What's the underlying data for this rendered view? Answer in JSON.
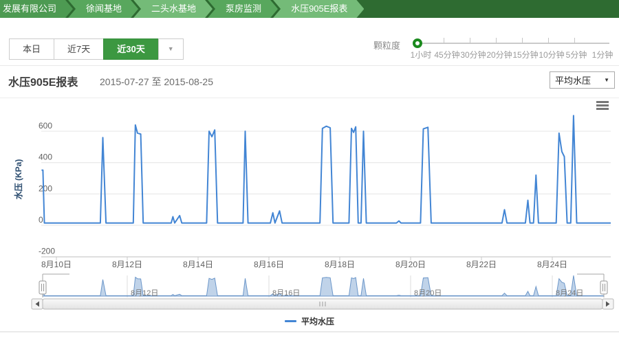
{
  "breadcrumb": {
    "items": [
      "发展有限公司",
      "徐闻基地",
      "二头水基地",
      "泵房监测",
      "水压905E报表"
    ]
  },
  "toolbar": {
    "range_buttons": [
      "本日",
      "近7天",
      "近30天"
    ],
    "active_range": "近30天",
    "more_caret": "▼",
    "granularity": {
      "label": "颗粒度",
      "options": [
        "1小时",
        "45分钟",
        "30分钟",
        "20分钟",
        "15分钟",
        "10分钟",
        "5分钟",
        "1分钟"
      ],
      "selected": "1小时"
    }
  },
  "report": {
    "title": "水压905E报表",
    "date_range": "2015-07-27 至 2015-08-25",
    "metric_select": {
      "value": "平均水压",
      "caret": "▼"
    }
  },
  "colors": {
    "accent_green": "#3c9841",
    "breadcrumb_dark": "#2e6b31",
    "line_blue": "#4285d4",
    "navigator_fill": "rgba(140,175,215,0.55)",
    "navigator_stroke": "#6b96c9",
    "grid": "#e4e4e4",
    "axis_label": "#606060",
    "yaxis_title": "#2b4c6f"
  },
  "chart_data": {
    "type": "line",
    "title": "",
    "xlabel": "",
    "ylabel": "水压 (KPa)",
    "x_unit": "date (August 2015, day of month; fractional = time of day)",
    "ylim": [
      -200,
      750
    ],
    "xlim": [
      9.58,
      25.65
    ],
    "grid": "horizontal-only",
    "yticks": [
      -200,
      0,
      200,
      400,
      600
    ],
    "xticks": {
      "days": [
        10,
        12,
        14,
        16,
        18,
        20,
        22,
        24
      ],
      "labels": [
        "8月10日",
        "8月12日",
        "8月14日",
        "8月16日",
        "8月18日",
        "8月20日",
        "8月22日",
        "8月24日"
      ]
    },
    "series": [
      {
        "name": "平均水压",
        "color": "#4285d4",
        "points": [
          [
            9.58,
            352
          ],
          [
            9.62,
            352
          ],
          [
            9.66,
            15
          ],
          [
            11.24,
            15
          ],
          [
            11.31,
            560
          ],
          [
            11.4,
            15
          ],
          [
            12.17,
            15
          ],
          [
            12.23,
            640
          ],
          [
            12.29,
            588
          ],
          [
            12.38,
            582
          ],
          [
            12.45,
            15
          ],
          [
            13.24,
            15
          ],
          [
            13.29,
            55
          ],
          [
            13.34,
            15
          ],
          [
            13.48,
            62
          ],
          [
            13.54,
            15
          ],
          [
            14.24,
            15
          ],
          [
            14.31,
            600
          ],
          [
            14.39,
            565
          ],
          [
            14.47,
            608
          ],
          [
            14.55,
            15
          ],
          [
            15.27,
            15
          ],
          [
            15.33,
            600
          ],
          [
            15.41,
            15
          ],
          [
            16.04,
            15
          ],
          [
            16.11,
            80
          ],
          [
            16.17,
            15
          ],
          [
            16.3,
            92
          ],
          [
            16.37,
            15
          ],
          [
            17.44,
            15
          ],
          [
            17.51,
            618
          ],
          [
            17.62,
            632
          ],
          [
            17.73,
            622
          ],
          [
            17.81,
            15
          ],
          [
            18.26,
            15
          ],
          [
            18.33,
            618
          ],
          [
            18.39,
            592
          ],
          [
            18.45,
            628
          ],
          [
            18.52,
            15
          ],
          [
            18.6,
            15
          ],
          [
            18.67,
            600
          ],
          [
            18.75,
            15
          ],
          [
            19.6,
            15
          ],
          [
            19.67,
            28
          ],
          [
            19.73,
            15
          ],
          [
            20.28,
            15
          ],
          [
            20.36,
            615
          ],
          [
            20.49,
            625
          ],
          [
            20.58,
            15
          ],
          [
            22.58,
            15
          ],
          [
            22.65,
            100
          ],
          [
            22.72,
            15
          ],
          [
            23.24,
            15
          ],
          [
            23.31,
            160
          ],
          [
            23.37,
            15
          ],
          [
            23.47,
            15
          ],
          [
            23.54,
            320
          ],
          [
            23.61,
            15
          ],
          [
            24.11,
            15
          ],
          [
            24.19,
            588
          ],
          [
            24.27,
            470
          ],
          [
            24.34,
            438
          ],
          [
            24.42,
            15
          ],
          [
            24.52,
            15
          ],
          [
            24.6,
            700
          ],
          [
            24.69,
            15
          ],
          [
            25.65,
            15
          ]
        ]
      }
    ],
    "navigator": {
      "days": [
        12,
        16,
        20,
        24
      ],
      "labels": [
        "8月12日",
        "8月16日",
        "8月20日",
        "8月24日"
      ]
    },
    "legend": {
      "label": "平均水压",
      "position": "bottom-center"
    }
  }
}
